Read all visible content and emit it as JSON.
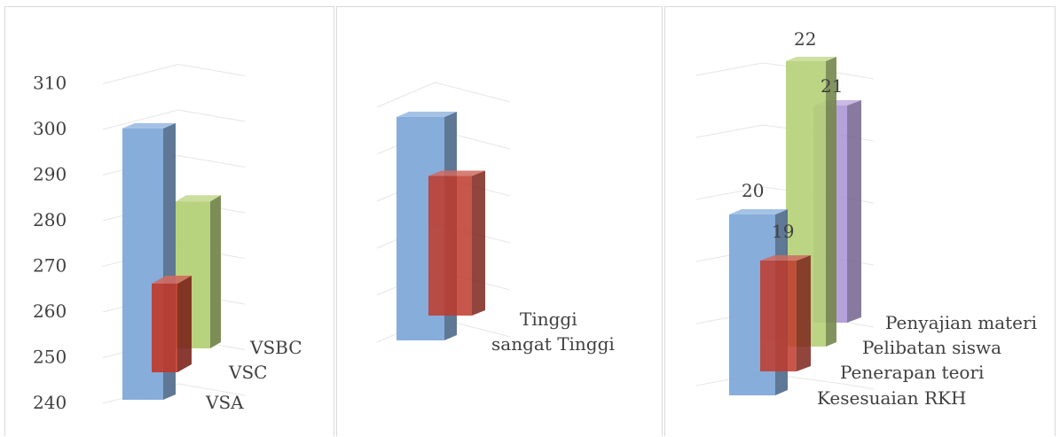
{
  "colors": {
    "blue": "#7da7d9",
    "red": "#c0392b",
    "green": "#b5d177",
    "purple": "#a58bd1"
  },
  "chart_data": [
    {
      "type": "bar",
      "categories": [
        "VSA",
        "VSC",
        "VSBC"
      ],
      "values": [
        301,
        267,
        285
      ],
      "ylim": [
        240,
        310
      ],
      "yticks": [
        "240",
        "250",
        "260",
        "270",
        "280",
        "290",
        "300",
        "310"
      ],
      "grid": true,
      "style": "3d-column"
    },
    {
      "type": "bar",
      "categories": [
        "Tinggi",
        "sangat Tinggi"
      ],
      "values": [
        4,
        3
      ],
      "grid": true,
      "style": "3d-column"
    },
    {
      "type": "bar",
      "categories": [
        "Kesesuaian RKH",
        "Penerapan teori",
        "Pelibatan siswa",
        "Penyajian materi"
      ],
      "values": [
        20,
        19,
        22,
        21
      ],
      "data_labels": [
        "20",
        "19",
        "22",
        "21"
      ],
      "grid": true,
      "style": "3d-column"
    }
  ]
}
